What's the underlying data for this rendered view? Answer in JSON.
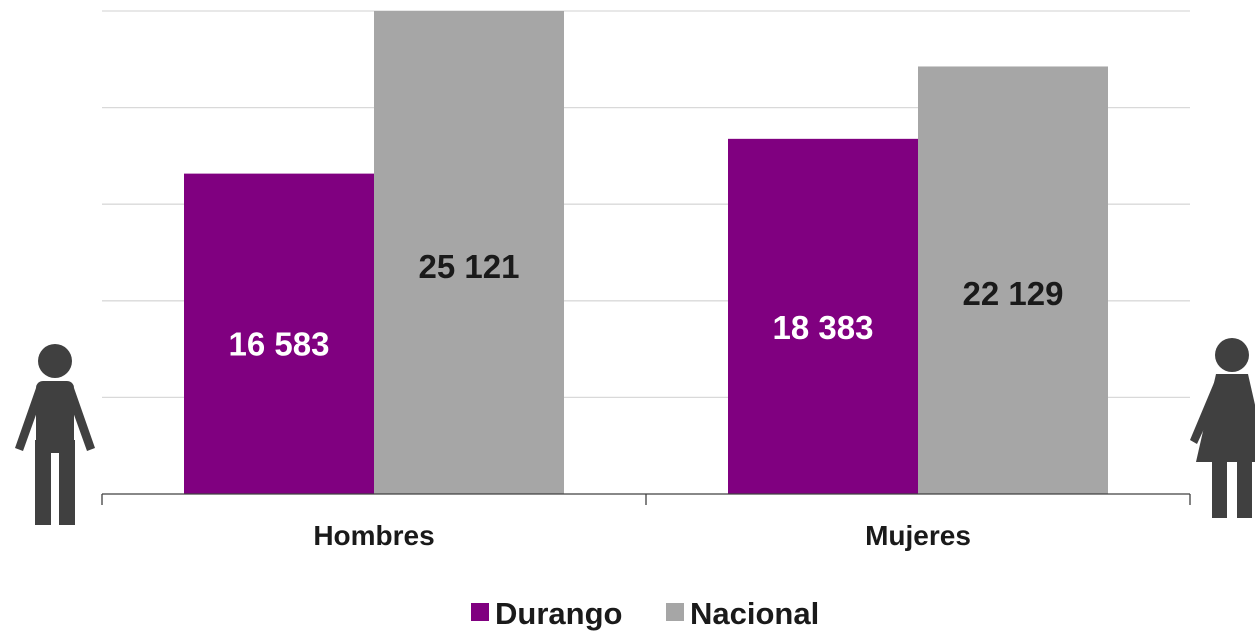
{
  "chart_data": {
    "type": "bar",
    "categories": [
      "Hombres",
      "Mujeres"
    ],
    "series": [
      {
        "name": "Durango",
        "values": [
          16583,
          18383
        ],
        "labels": [
          "16 583",
          "18 383"
        ],
        "color": "#800080",
        "label_color": "#ffffff"
      },
      {
        "name": "Nacional",
        "values": [
          25121,
          22129
        ],
        "labels": [
          "25 121",
          "22 129"
        ],
        "color": "#a6a6a6",
        "label_color": "#1a1a1a"
      }
    ],
    "ylim": [
      0,
      25000
    ],
    "grid": true,
    "legend_position": "bottom-center"
  },
  "icons": {
    "left": "man-icon",
    "right": "woman-icon"
  }
}
